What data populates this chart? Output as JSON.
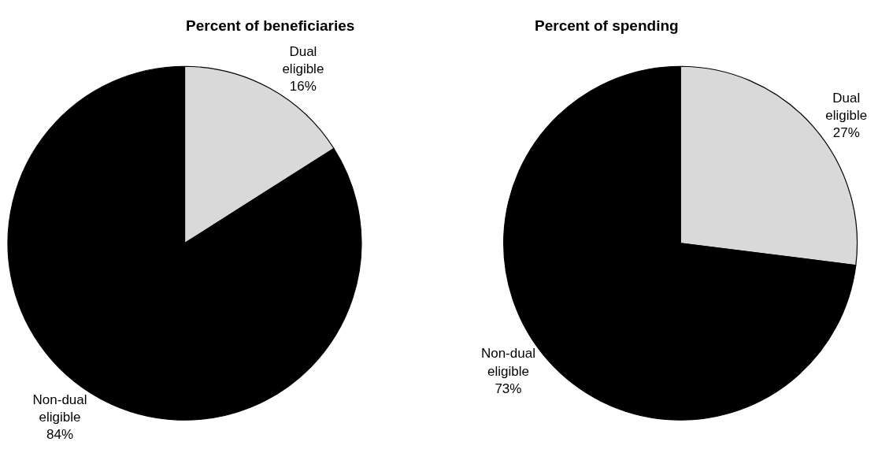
{
  "chart_data": [
    {
      "type": "pie",
      "title": "Percent of beneficiaries",
      "categories": [
        "Dual eligible",
        "Non-dual eligible"
      ],
      "values": [
        16,
        84
      ],
      "colors": [
        "#d9d9d9",
        "#000000"
      ],
      "value_labels": [
        "16%",
        "84%"
      ]
    },
    {
      "type": "pie",
      "title": "Percent of spending",
      "categories": [
        "Dual eligible",
        "Non-dual eligible"
      ],
      "values": [
        27,
        73
      ],
      "colors": [
        "#d9d9d9",
        "#000000"
      ],
      "value_labels": [
        "27%",
        "73%"
      ]
    }
  ]
}
